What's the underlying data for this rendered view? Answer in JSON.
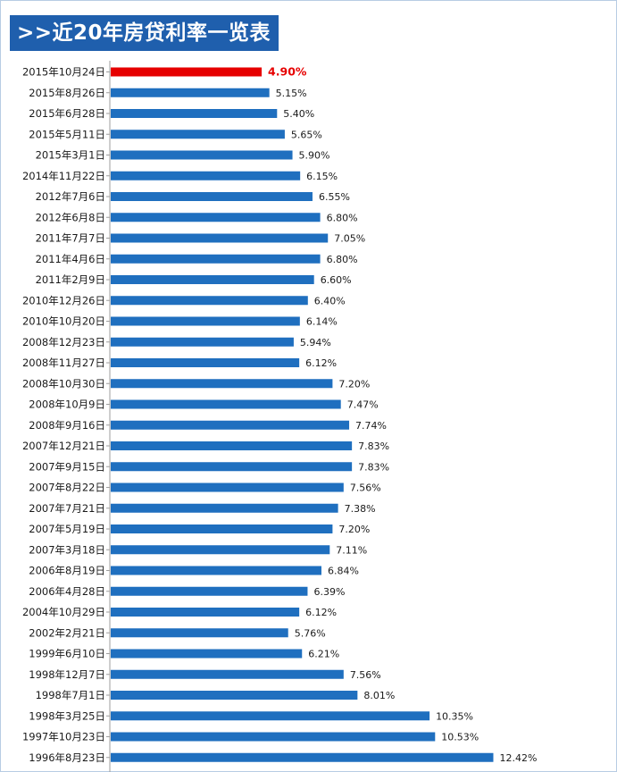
{
  "title": ">>近20年房贷利率一览表",
  "colors": {
    "bar": "#1f6fbf",
    "highlight_bar": "#e60000",
    "highlight_text": "#e60000",
    "title_bg": "#1f5fad",
    "axis": "#9e9e9e"
  },
  "chart_data": {
    "type": "bar",
    "orientation": "horizontal",
    "title": ">>近20年房贷利率一览表",
    "xlabel": "",
    "ylabel": "",
    "xlim": [
      0,
      13.5
    ],
    "highlight_index": 0,
    "categories": [
      "2015年10月24日",
      "2015年8月26日",
      "2015年6月28日",
      "2015年5月11日",
      "2015年3月1日",
      "2014年11月22日",
      "2012年7月6日",
      "2012年6月8日",
      "2011年7月7日",
      "2011年4月6日",
      "2011年2月9日",
      "2010年12月26日",
      "2010年10月20日",
      "2008年12月23日",
      "2008年11月27日",
      "2008年10月30日",
      "2008年10月9日",
      "2008年9月16日",
      "2007年12月21日",
      "2007年9月15日",
      "2007年8月22日",
      "2007年7月21日",
      "2007年5月19日",
      "2007年3月18日",
      "2006年8月19日",
      "2006年4月28日",
      "2004年10月29日",
      "2002年2月21日",
      "1999年6月10日",
      "1998年12月7日",
      "1998年7月1日",
      "1998年3月25日",
      "1997年10月23日",
      "1996年8月23日"
    ],
    "values": [
      4.9,
      5.15,
      5.4,
      5.65,
      5.9,
      6.15,
      6.55,
      6.8,
      7.05,
      6.8,
      6.6,
      6.4,
      6.14,
      5.94,
      6.12,
      7.2,
      7.47,
      7.74,
      7.83,
      7.83,
      7.56,
      7.38,
      7.2,
      7.11,
      6.84,
      6.39,
      6.12,
      5.76,
      6.21,
      7.56,
      8.01,
      10.35,
      10.53,
      12.42
    ],
    "labels": [
      "4.90%",
      "5.15%",
      "5.40%",
      "5.65%",
      "5.90%",
      "6.15%",
      "6.55%",
      "6.80%",
      "7.05%",
      "6.80%",
      "6.60%",
      "6.40%",
      "6.14%",
      "5.94%",
      "6.12%",
      "7.20%",
      "7.47%",
      "7.74%",
      "7.83%",
      "7.83%",
      "7.56%",
      "7.38%",
      "7.20%",
      "7.11%",
      "6.84%",
      "6.39%",
      "6.12%",
      "5.76%",
      "6.21%",
      "7.56%",
      "8.01%",
      "10.35%",
      "10.53%",
      "12.42%"
    ]
  }
}
